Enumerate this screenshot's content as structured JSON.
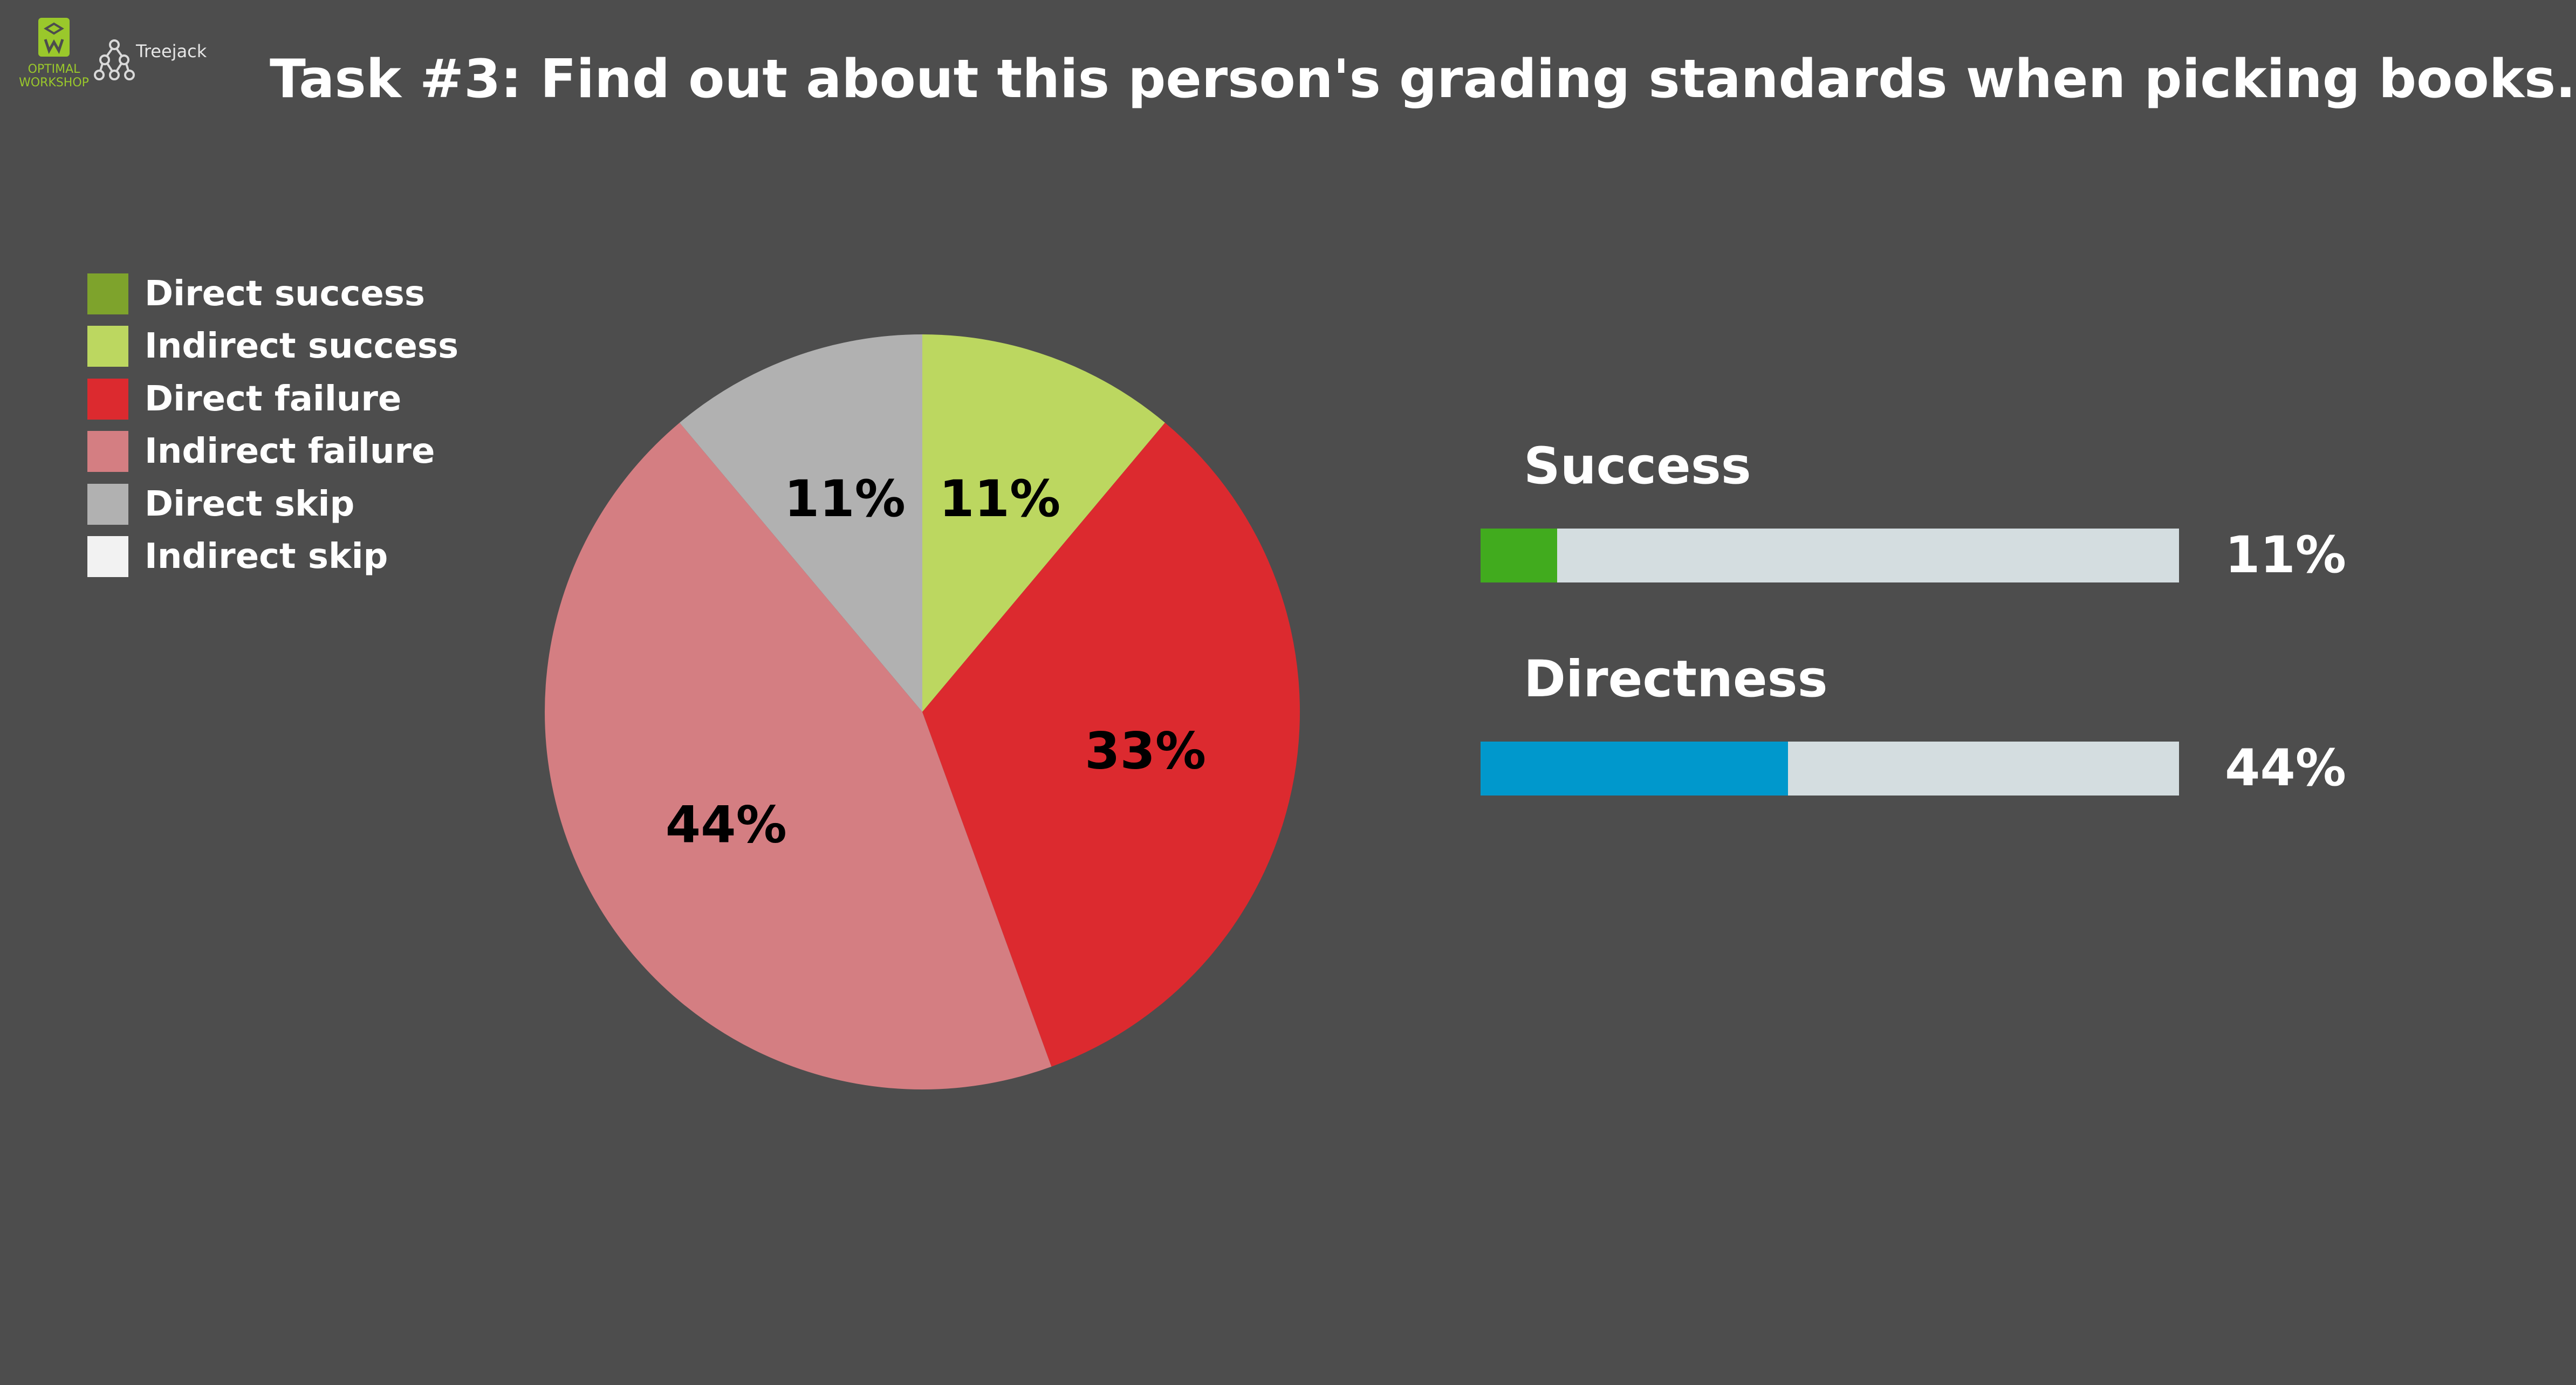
{
  "header": {
    "brand_top": "OPTIMAL",
    "brand_bottom": "WORKSHOP",
    "product": "Treejack",
    "title": "Task #3: Find out about this person's grading standards when picking books."
  },
  "legend": [
    {
      "label": "Direct success",
      "color": "#7ea32c"
    },
    {
      "label": "Indirect success",
      "color": "#bcd760"
    },
    {
      "label": "Direct failure",
      "color": "#dc2a2f"
    },
    {
      "label": "Indirect failure",
      "color": "#d47e82"
    },
    {
      "label": "Direct skip",
      "color": "#b1b1b1"
    },
    {
      "label": "Indirect skip",
      "color": "#f2f2f2"
    }
  ],
  "metrics": [
    {
      "title": "Success",
      "value_label": "11%",
      "value": 0.11,
      "color": "#41ab1e"
    },
    {
      "title": "Directness",
      "value_label": "44%",
      "value": 0.44,
      "color": "#0098cc"
    }
  ],
  "chart_data": {
    "type": "pie",
    "slices": [
      {
        "name": "Direct success",
        "value": 0,
        "label": "",
        "color": "#7ea32c"
      },
      {
        "name": "Indirect success",
        "value": 11,
        "label": "11%",
        "color": "#bcd760"
      },
      {
        "name": "Direct failure",
        "value": 33,
        "label": "33%",
        "color": "#dc2a2f"
      },
      {
        "name": "Indirect failure",
        "value": 44,
        "label": "44%",
        "color": "#d47e82"
      },
      {
        "name": "Direct skip",
        "value": 11,
        "label": "11%",
        "color": "#b1b1b1"
      },
      {
        "name": "Indirect skip",
        "value": 0,
        "label": "",
        "color": "#f2f2f2"
      }
    ],
    "start": "12 o'clock",
    "direction": "clockwise",
    "legend_position": "top-left"
  }
}
